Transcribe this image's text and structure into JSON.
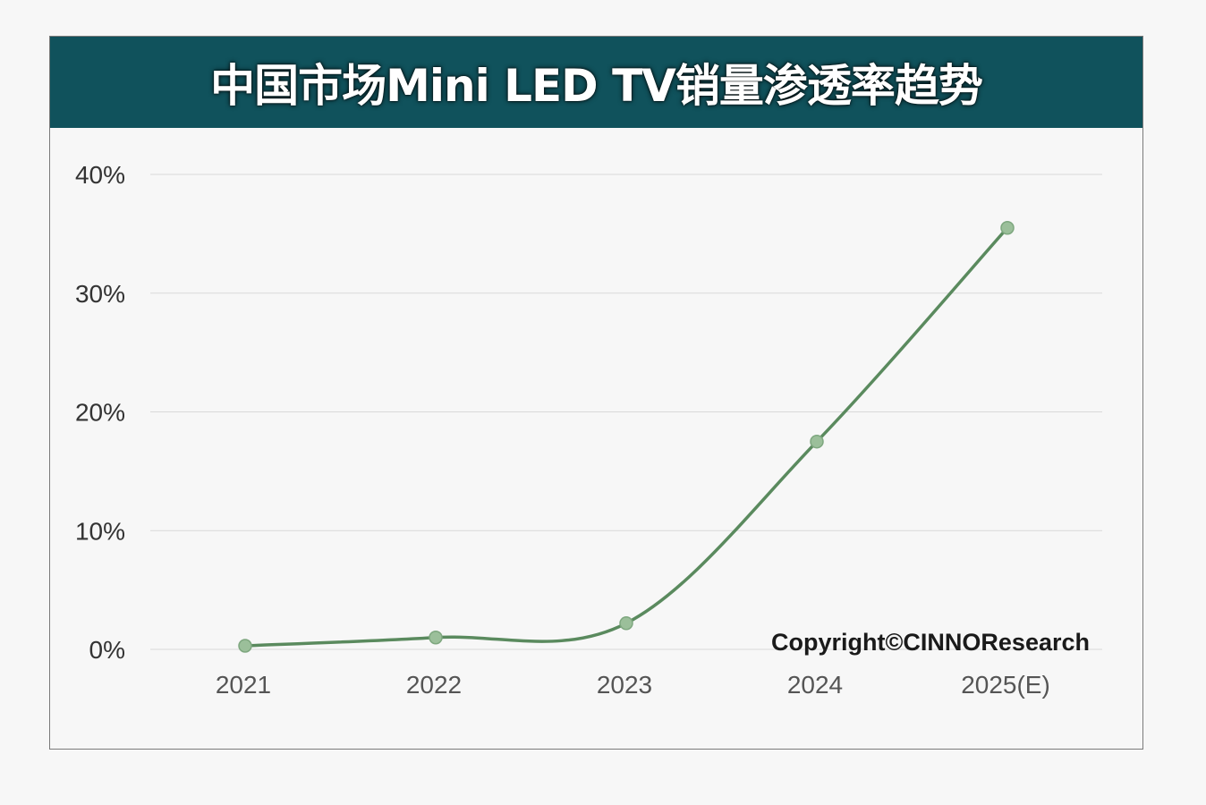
{
  "header": {
    "title": "中国市场Mini LED TV销量渗透率趋势"
  },
  "copyright": "Copyright©CINNOResearch",
  "colors": {
    "header_bg": "#10525c",
    "line": "#5a8a5e",
    "marker": "#9bbf9a",
    "grid": "#d9d9d9"
  },
  "chart_data": {
    "type": "line",
    "title": "中国市场Mini LED TV销量渗透率趋势",
    "categories": [
      "2021",
      "2022",
      "2023",
      "2024",
      "2025(E)"
    ],
    "series": [
      {
        "name": "Mini LED TV销量渗透率",
        "values": [
          0.3,
          1.0,
          2.2,
          17.5,
          35.5
        ]
      }
    ],
    "yticks": [
      0,
      10,
      20,
      30,
      40
    ],
    "ytick_labels": [
      "0%",
      "10%",
      "20%",
      "30%",
      "40%"
    ],
    "ylim": [
      0,
      40
    ],
    "xlabel": "",
    "ylabel": "",
    "grid": true,
    "smooth": true
  }
}
